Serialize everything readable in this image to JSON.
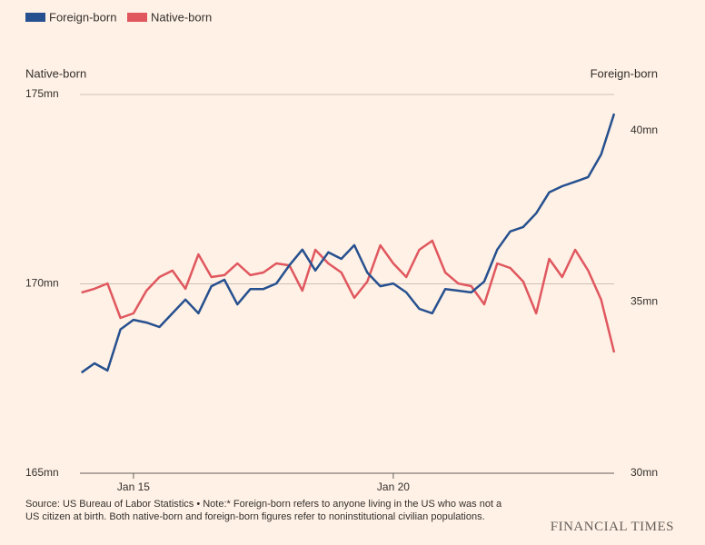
{
  "chart_data": {
    "type": "line",
    "y_label": "Native-born",
    "y2_label": "Foreign-born",
    "x": [
      2014,
      2014.25,
      2014.5,
      2014.75,
      2015,
      2015.25,
      2015.5,
      2015.75,
      2016,
      2016.25,
      2016.5,
      2016.75,
      2017,
      2017.25,
      2017.5,
      2017.75,
      2018,
      2018.25,
      2018.5,
      2018.75,
      2019,
      2019.25,
      2019.5,
      2019.75,
      2020,
      2020.25,
      2020.5,
      2020.75,
      2021,
      2021.25,
      2021.5,
      2021.75,
      2022,
      2022.25,
      2022.5,
      2022.75,
      2023,
      2023.25,
      2023.5,
      2023.75,
      2024,
      2024.25
    ],
    "series": [
      {
        "name": "Foreign-born",
        "color": "#26508f",
        "axis": "y2",
        "values": [
          32.94,
          33.21,
          33.0,
          34.2,
          34.48,
          34.4,
          34.27,
          34.67,
          35.07,
          34.67,
          35.46,
          35.65,
          34.93,
          35.38,
          35.38,
          35.54,
          36.07,
          36.53,
          35.92,
          36.45,
          36.26,
          36.66,
          35.86,
          35.46,
          35.54,
          35.28,
          34.8,
          34.67,
          35.38,
          35.33,
          35.28,
          35.6,
          36.53,
          37.06,
          37.19,
          37.59,
          38.2,
          38.38,
          38.51,
          38.65,
          39.31,
          40.5
        ]
      },
      {
        "name": "Native-born",
        "color": "#e0575f",
        "values": [
          169.77,
          169.87,
          170.01,
          169.1,
          169.22,
          169.82,
          170.18,
          170.35,
          169.87,
          170.78,
          170.18,
          170.23,
          170.54,
          170.23,
          170.3,
          170.54,
          170.49,
          169.82,
          170.9,
          170.54,
          170.3,
          169.63,
          170.06,
          171.02,
          170.54,
          170.18,
          170.9,
          171.14,
          170.3,
          170.01,
          169.94,
          169.46,
          170.54,
          170.42,
          170.06,
          169.22,
          170.66,
          170.18,
          170.9,
          170.35,
          169.58,
          168.19
        ]
      }
    ],
    "xlim": [
      2013.97,
      2024.25
    ],
    "xticks": [
      {
        "value": 2015,
        "label": "Jan 15"
      },
      {
        "value": 2020,
        "label": "Jan 20"
      }
    ],
    "ylim": [
      165,
      175
    ],
    "yticks": [
      {
        "value": 165,
        "label": "165mn"
      },
      {
        "value": 170,
        "label": "170mn"
      },
      {
        "value": 175,
        "label": "175mn"
      }
    ],
    "y2lim": [
      30,
      41.06
    ],
    "y2ticks": [
      {
        "value": 30,
        "label": "30mn"
      },
      {
        "value": 35,
        "label": "35mn"
      },
      {
        "value": 40,
        "label": "40mn"
      }
    ],
    "grid": true,
    "legend": "top-left",
    "source": "Source: US Bureau of Labor Statistics • Note:* Foreign-born refers to anyone living in the US who was not a US citizen at birth. Both native-born and foreign-born figures refer to noninstitutional civilian populations.",
    "brand": "FINANCIAL TIMES"
  }
}
